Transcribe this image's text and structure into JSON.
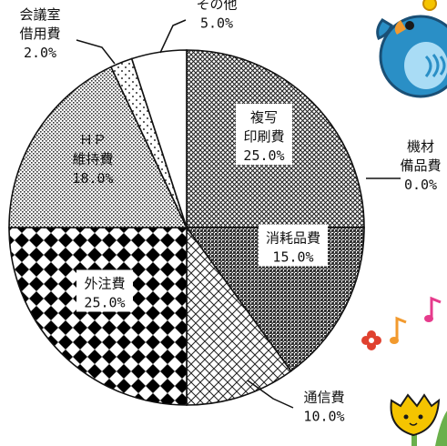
{
  "chart_data": {
    "type": "pie",
    "start": "12 o'clock, clockwise",
    "slices": [
      {
        "label": [
          "複写",
          "印刷費"
        ],
        "value": 25.0,
        "display": "25.0%",
        "pattern": "dense-crosshatch"
      },
      {
        "label": [
          "機材",
          "備品費"
        ],
        "value": 0.0,
        "display": "0.0%",
        "pattern": "none"
      },
      {
        "label": [
          "消耗品費"
        ],
        "value": 15.0,
        "display": "15.0%",
        "pattern": "dark-dots"
      },
      {
        "label": [
          "通信費"
        ],
        "value": 10.0,
        "display": "10.0%",
        "pattern": "diagonal-grid"
      },
      {
        "label": [
          "外注費"
        ],
        "value": 25.0,
        "display": "25.0%",
        "pattern": "black-diamonds"
      },
      {
        "label": [
          "ＨＰ",
          "維持費"
        ],
        "value": 18.0,
        "display": "18.0%",
        "pattern": "fine-dots"
      },
      {
        "label": [
          "会議室",
          "借用費"
        ],
        "value": 2.0,
        "display": "2.0%",
        "pattern": "sparse-dots"
      },
      {
        "label": [
          "その他"
        ],
        "value": 5.0,
        "display": "5.0%",
        "pattern": "white"
      }
    ]
  },
  "decor": {
    "illustrations": [
      "bluebird-icon",
      "music-notes-icon",
      "flowers-icon"
    ],
    "colors": {
      "bird": "#2a8fc6",
      "bird_belly": "#a9dcf5",
      "note_pink": "#e63b8c",
      "note_orange": "#f29a2e",
      "flower_red": "#e0412f",
      "flower_yellow": "#f5c400",
      "leaf": "#6ab04c"
    }
  }
}
